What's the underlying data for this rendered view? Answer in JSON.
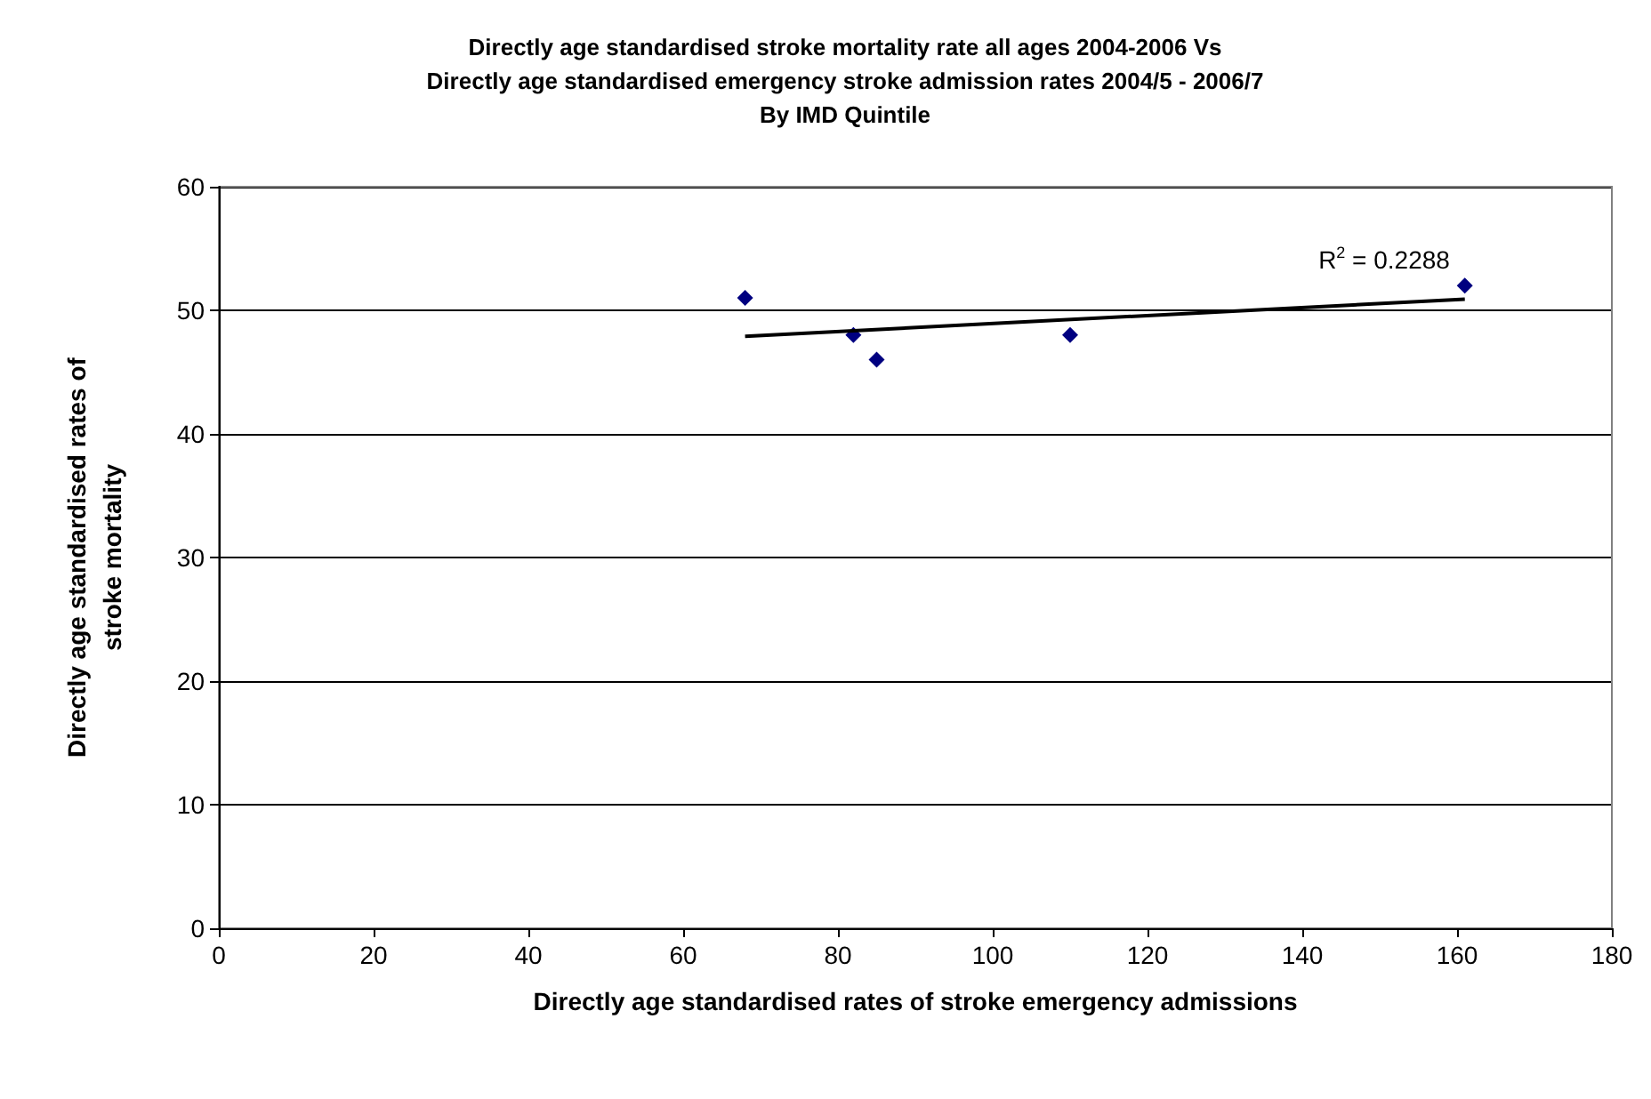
{
  "chart_data": {
    "type": "scatter",
    "title": "Directly age standardised stroke mortality rate all ages 2004-2006 Vs\nDirectly age standardised emergency stroke admission rates 2004/5 - 2006/7\nBy IMD Quintile",
    "xlabel": "Directly age standardised rates of stroke emergency admissions",
    "ylabel": "Directly age standardised rates of\nstroke mortality",
    "series": [
      {
        "color": "#000080",
        "x": [
          68,
          82,
          85,
          110,
          161
        ],
        "values": [
          51,
          48,
          46,
          48,
          52
        ],
        "marker": "diamond"
      },
      {
        "type": "line",
        "color": "#000000",
        "x": [
          68,
          161
        ],
        "values": [
          47.9,
          50.9
        ],
        "marker": "none",
        "line_style": "solid"
      }
    ],
    "annotations": [
      "R$^{2}$ = 0.2288"
    ],
    "xlim": [
      0,
      180
    ],
    "xticks": [
      0,
      20,
      40,
      60,
      80,
      100,
      120,
      140,
      160,
      180
    ],
    "ylim": [
      0,
      60
    ],
    "yticks": [
      0,
      10,
      20,
      30,
      40,
      50,
      60
    ],
    "grid": "y"
  }
}
